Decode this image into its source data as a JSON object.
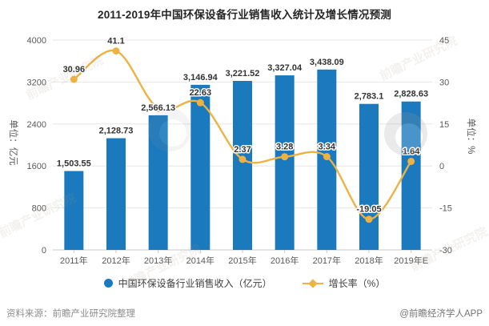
{
  "title": "2011-2019年中国环保设备行业销售收入统计及增长情况预测",
  "left_axis": {
    "name": "单位：亿元",
    "ticks": [
      "0",
      "800",
      "1600",
      "2400",
      "3200",
      "4000"
    ],
    "min": 0,
    "max": 4000
  },
  "right_axis": {
    "name": "单位：%",
    "ticks": [
      "-30",
      "-15",
      "0",
      "15",
      "30",
      "45"
    ],
    "min": -30,
    "max": 45
  },
  "legend": {
    "bar_label": "中国环保设备行业销售收入（亿元）",
    "line_label": "增长率（%）"
  },
  "footer": {
    "source": "资料来源：前瞻产业研究院整理",
    "credit": "@前瞻经济学人APP"
  },
  "watermark": {
    "text": "前瞻产业研究院"
  },
  "colors": {
    "bar": "#1b79bd",
    "line": "#eeb243",
    "grid": "#e6e6e6",
    "axis": "#c9c9c9",
    "tick_text": "#595959",
    "value_text": "#333333"
  },
  "chart_data": {
    "type": "bar+line",
    "categories": [
      "2011年",
      "2012年",
      "2013年",
      "2014年",
      "2015年",
      "2016年",
      "2017年",
      "2018年",
      "2019年E"
    ],
    "series": [
      {
        "name": "中国环保设备行业销售收入（亿元）",
        "type": "bar",
        "axis": "left",
        "color": "#1b79bd",
        "values": [
          1503.55,
          2128.73,
          2566.13,
          3146.94,
          3221.52,
          3327.04,
          3438.09,
          2783.1,
          2828.63
        ],
        "labels": [
          "1,503.55",
          "2,128.73",
          "2,566.13",
          "3,146.94",
          "3,221.52",
          "3,327.04",
          "3,438.09",
          "2,783.1",
          "2,828.63"
        ]
      },
      {
        "name": "增长率（%）",
        "type": "line",
        "axis": "right",
        "color": "#eeb243",
        "values": [
          30.96,
          41.1,
          20.55,
          22.63,
          2.37,
          3.28,
          3.34,
          -19.05,
          1.64
        ],
        "labels": [
          "30.96",
          "41.1",
          "",
          "22.63",
          "2.37",
          "3.28",
          "3.34",
          "-19.05",
          "1.64"
        ],
        "note": "2013 data-point label is not displayed in the chart; value estimated from curve position"
      }
    ],
    "left_ylim": [
      0,
      4000
    ],
    "right_ylim": [
      -30,
      45
    ],
    "grid": true,
    "legend_position": "bottom",
    "title": "2011-2019年中国环保设备行业销售收入统计及增长情况预测"
  }
}
